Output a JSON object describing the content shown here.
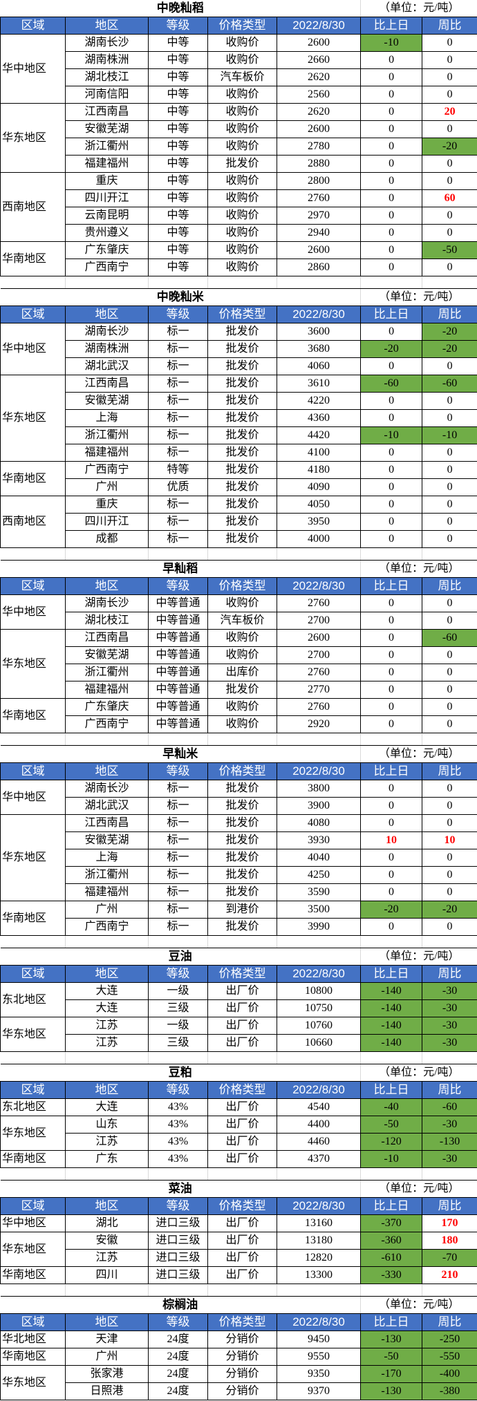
{
  "headers": [
    "区域",
    "地区",
    "等级",
    "价格类型",
    "2022/8/30",
    "比上日",
    "周比"
  ],
  "colors": {
    "header_bg": "#4472C4",
    "decrease_bg": "#70AD47",
    "increase_text": "#FF0000"
  },
  "sections": [
    {
      "title": "中晚籼稻",
      "unit": "（单位：元/吨）",
      "groups": [
        {
          "region": "华中地区",
          "rows": [
            [
              "湖南长沙",
              "中等",
              "收购价",
              "2600",
              "-10",
              "0"
            ],
            [
              "湖南株洲",
              "中等",
              "收购价",
              "2660",
              "0",
              "0"
            ],
            [
              "湖北枝江",
              "中等",
              "汽车板价",
              "2620",
              "0",
              "0"
            ],
            [
              "河南信阳",
              "中等",
              "收购价",
              "2560",
              "0",
              "0"
            ]
          ]
        },
        {
          "region": "华东地区",
          "rows": [
            [
              "江西南昌",
              "中等",
              "收购价",
              "2620",
              "0",
              "20"
            ],
            [
              "安徽芜湖",
              "中等",
              "收购价",
              "2600",
              "0",
              "0"
            ],
            [
              "浙江衢州",
              "中等",
              "收购价",
              "2780",
              "0",
              "-20"
            ],
            [
              "福建福州",
              "中等",
              "批发价",
              "2880",
              "0",
              "0"
            ]
          ]
        },
        {
          "region": "西南地区",
          "rows": [
            [
              "重庆",
              "中等",
              "收购价",
              "2800",
              "0",
              "0"
            ],
            [
              "四川开江",
              "中等",
              "收购价",
              "2760",
              "0",
              "60"
            ],
            [
              "云南昆明",
              "中等",
              "收购价",
              "2970",
              "0",
              "0"
            ],
            [
              "贵州遵义",
              "中等",
              "收购价",
              "2940",
              "0",
              "0"
            ]
          ]
        },
        {
          "region": "华南地区",
          "rows": [
            [
              "广东肇庆",
              "中等",
              "收购价",
              "2600",
              "0",
              "-50"
            ],
            [
              "广西南宁",
              "中等",
              "收购价",
              "2860",
              "0",
              "0"
            ]
          ]
        }
      ]
    },
    {
      "title": "中晚籼米",
      "unit": "（单位：元/吨）",
      "groups": [
        {
          "region": "华中地区",
          "rows": [
            [
              "湖南长沙",
              "标一",
              "批发价",
              "3600",
              "0",
              "-20"
            ],
            [
              "湖南株洲",
              "标一",
              "批发价",
              "3680",
              "-20",
              "-20"
            ],
            [
              "湖北武汉",
              "标一",
              "批发价",
              "4060",
              "0",
              "0"
            ]
          ]
        },
        {
          "region": "华东地区",
          "rows": [
            [
              "江西南昌",
              "标一",
              "批发价",
              "3610",
              "-60",
              "-60"
            ],
            [
              "安徽芜湖",
              "标一",
              "批发价",
              "4220",
              "0",
              "0"
            ],
            [
              "上海",
              "标一",
              "批发价",
              "4360",
              "0",
              "0"
            ],
            [
              "浙江衢州",
              "标一",
              "批发价",
              "4420",
              "-10",
              "-10"
            ],
            [
              "福建福州",
              "标一",
              "批发价",
              "4100",
              "0",
              "0"
            ]
          ]
        },
        {
          "region": "华南地区",
          "rows": [
            [
              "广西南宁",
              "特等",
              "批发价",
              "4180",
              "0",
              "0"
            ],
            [
              "广州",
              "优质",
              "批发价",
              "4090",
              "0",
              "0"
            ]
          ]
        },
        {
          "region": "西南地区",
          "rows": [
            [
              "重庆",
              "标一",
              "批发价",
              "4050",
              "0",
              "0"
            ],
            [
              "四川开江",
              "标一",
              "批发价",
              "3950",
              "0",
              "0"
            ],
            [
              "成都",
              "标一",
              "批发价",
              "4000",
              "0",
              "0"
            ]
          ]
        }
      ]
    },
    {
      "title": "早籼稻",
      "unit": "（单位：元/吨）",
      "groups": [
        {
          "region": "华中地区",
          "rows": [
            [
              "湖南长沙",
              "中等普通",
              "收购价",
              "2760",
              "0",
              "0"
            ],
            [
              "湖北枝江",
              "中等普通",
              "汽车板价",
              "2700",
              "0",
              "0"
            ]
          ]
        },
        {
          "region": "华东地区",
          "rows": [
            [
              "江西南昌",
              "中等普通",
              "收购价",
              "2600",
              "0",
              "-60"
            ],
            [
              "安徽芜湖",
              "中等普通",
              "收购价",
              "2700",
              "0",
              "0"
            ],
            [
              "浙江衢州",
              "中等普通",
              "出库价",
              "2760",
              "0",
              "0"
            ],
            [
              "福建福州",
              "中等普通",
              "批发价",
              "2770",
              "0",
              "0"
            ]
          ]
        },
        {
          "region": "华南地区",
          "rows": [
            [
              "广东肇庆",
              "中等普通",
              "收购价",
              "2760",
              "0",
              "0"
            ],
            [
              "广西南宁",
              "中等普通",
              "收购价",
              "2920",
              "0",
              "0"
            ]
          ]
        }
      ]
    },
    {
      "title": "早籼米",
      "unit": "（单位：元/吨）",
      "groups": [
        {
          "region": "华中地区",
          "rows": [
            [
              "湖南长沙",
              "标一",
              "批发价",
              "3800",
              "0",
              "0"
            ],
            [
              "湖北武汉",
              "标一",
              "批发价",
              "3900",
              "0",
              "0"
            ]
          ]
        },
        {
          "region": "华东地区",
          "rows": [
            [
              "江西南昌",
              "标一",
              "批发价",
              "4080",
              "0",
              "0"
            ],
            [
              "安徽芜湖",
              "标一",
              "批发价",
              "3930",
              "10",
              "10"
            ],
            [
              "上海",
              "标一",
              "批发价",
              "4040",
              "0",
              "0"
            ],
            [
              "浙江衢州",
              "标一",
              "批发价",
              "4250",
              "0",
              "0"
            ],
            [
              "福建福州",
              "标一",
              "批发价",
              "3590",
              "0",
              "0"
            ]
          ]
        },
        {
          "region": "华南地区",
          "rows": [
            [
              "广州",
              "标一",
              "到港价",
              "3500",
              "-20",
              "-20"
            ],
            [
              "广西南宁",
              "标一",
              "批发价",
              "3990",
              "0",
              "0"
            ]
          ]
        }
      ]
    },
    {
      "title": "豆油",
      "unit": "（单位：元/吨）",
      "groups": [
        {
          "region": "东北地区",
          "rows": [
            [
              "大连",
              "一级",
              "出厂价",
              "10800",
              "-140",
              "-30"
            ],
            [
              "大连",
              "三级",
              "出厂价",
              "10750",
              "-140",
              "-30"
            ]
          ]
        },
        {
          "region": "华东地区",
          "rows": [
            [
              "江苏",
              "一级",
              "出厂价",
              "10760",
              "-140",
              "-30"
            ],
            [
              "江苏",
              "三级",
              "出厂价",
              "10660",
              "-140",
              "-30"
            ]
          ]
        }
      ]
    },
    {
      "title": "豆粕",
      "unit": "（单位：元/吨）",
      "groups": [
        {
          "region": "东北地区",
          "rows": [
            [
              "大连",
              "43%",
              "出厂价",
              "4540",
              "-40",
              "-60"
            ]
          ]
        },
        {
          "region": "华东地区",
          "rows": [
            [
              "山东",
              "43%",
              "出厂价",
              "4400",
              "-50",
              "-30"
            ],
            [
              "江苏",
              "43%",
              "出厂价",
              "4460",
              "-120",
              "-130"
            ]
          ]
        },
        {
          "region": "华南地区",
          "rows": [
            [
              "广东",
              "43%",
              "出厂价",
              "4370",
              "-10",
              "-30"
            ]
          ]
        }
      ]
    },
    {
      "title": "菜油",
      "unit": "（单位：元/吨）",
      "groups": [
        {
          "region": "华中地区",
          "rows": [
            [
              "湖北",
              "进口三级",
              "出厂价",
              "13160",
              "-370",
              "170"
            ]
          ]
        },
        {
          "region": "华东地区",
          "rows": [
            [
              "安徽",
              "进口三级",
              "出厂价",
              "13180",
              "-360",
              "180"
            ],
            [
              "江苏",
              "进口三级",
              "出厂价",
              "12820",
              "-610",
              "-70"
            ]
          ]
        },
        {
          "region": "华南地区",
          "rows": [
            [
              "四川",
              "进口三级",
              "出厂价",
              "13300",
              "-330",
              "210"
            ]
          ]
        }
      ]
    },
    {
      "title": "棕榈油",
      "unit": "（单位：元/吨）",
      "groups": [
        {
          "region": "华北地区",
          "rows": [
            [
              "天津",
              "24度",
              "分销价",
              "9450",
              "-130",
              "-250"
            ]
          ]
        },
        {
          "region": "华南地区",
          "rows": [
            [
              "广州",
              "24度",
              "分销价",
              "9550",
              "-50",
              "-550"
            ]
          ]
        },
        {
          "region": "华东地区",
          "rows": [
            [
              "张家港",
              "24度",
              "分销价",
              "9350",
              "-170",
              "-400"
            ],
            [
              "日照港",
              "24度",
              "分销价",
              "9370",
              "-130",
              "-380"
            ]
          ]
        }
      ]
    }
  ]
}
